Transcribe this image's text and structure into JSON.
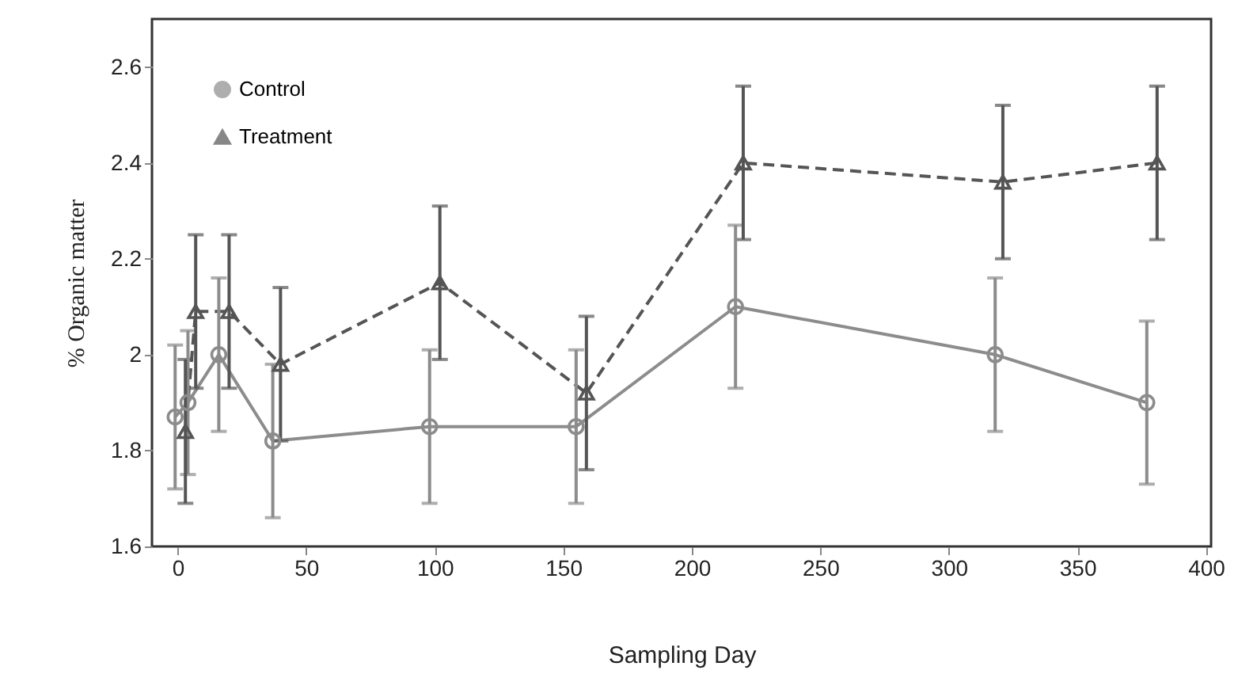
{
  "chart_data": {
    "type": "line",
    "xlabel": "Sampling Day",
    "ylabel": "% Organic matter",
    "xlim": [
      -10,
      402
    ],
    "xticks": [
      0,
      50,
      100,
      150,
      200,
      250,
      300,
      350,
      400
    ],
    "ylim": [
      1.6,
      2.7
    ],
    "yticks": [
      1.6,
      1.8,
      {
        "value": 2,
        "label": "2"
      },
      2.2,
      2.4,
      2.6
    ],
    "grid": false,
    "legend": "top left",
    "series": [
      {
        "name": "Control",
        "color": "#8c8c8c",
        "marker": "circle",
        "line_style": "solid",
        "x": [
          -1,
          4,
          16,
          37,
          98,
          155,
          217,
          318,
          377
        ],
        "values": [
          1.87,
          1.9,
          2.0,
          1.82,
          1.85,
          1.85,
          2.1,
          2.0,
          1.9
        ],
        "errors": [
          0.15,
          0.15,
          0.16,
          0.16,
          0.16,
          0.16,
          0.17,
          0.16,
          0.17
        ]
      },
      {
        "name": "Treatment",
        "color": "#555555",
        "marker": "triangle",
        "line_style": "dashed",
        "x": [
          3,
          7,
          20,
          40,
          102,
          159,
          220,
          321,
          381
        ],
        "values": [
          1.84,
          2.09,
          2.09,
          1.98,
          2.15,
          1.92,
          2.4,
          2.36,
          2.4
        ],
        "errors": [
          0.15,
          0.16,
          0.16,
          0.16,
          0.16,
          0.16,
          0.16,
          0.16,
          0.16
        ]
      }
    ]
  }
}
